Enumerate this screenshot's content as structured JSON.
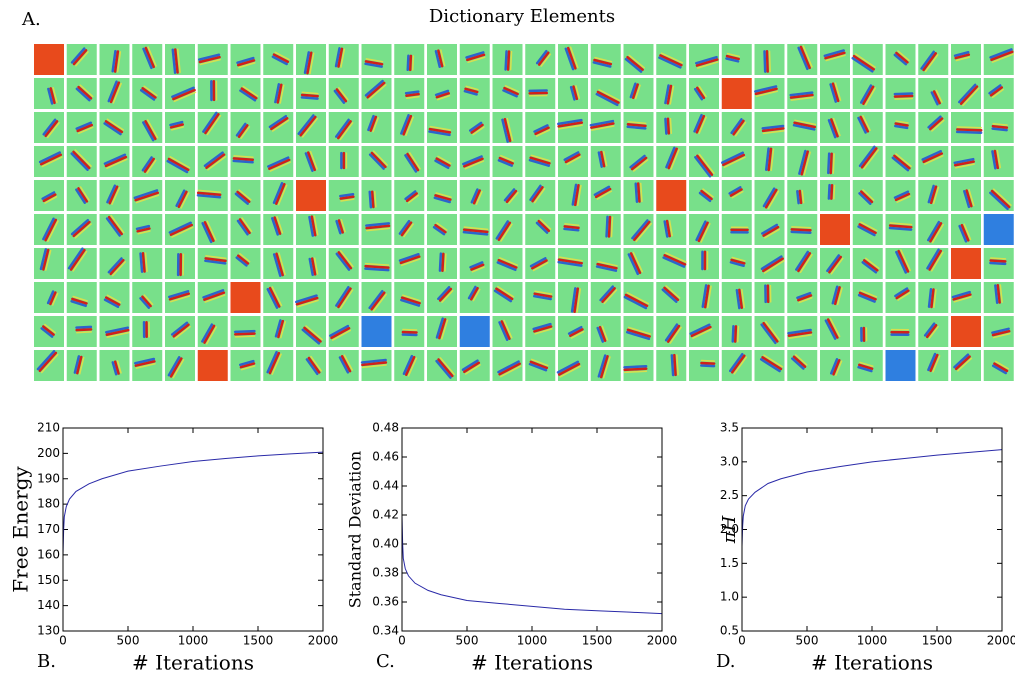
{
  "figure": {
    "label": "A.",
    "title": "Dictionary Elements"
  },
  "chart_data": [
    {
      "type": "line",
      "panel": "B.",
      "xlabel": "# Iterations",
      "ylabel": "Free Energy",
      "color": "#2a2aa8",
      "x": [
        0,
        5,
        10,
        25,
        50,
        100,
        200,
        300,
        500,
        750,
        1000,
        1250,
        1500,
        1750,
        2000
      ],
      "values": [
        160,
        170,
        175,
        179,
        182,
        185,
        188,
        190,
        193,
        195,
        196.8,
        198,
        199,
        199.8,
        200.5
      ],
      "xlim": [
        0,
        2000
      ],
      "xticks": [
        0,
        500,
        1000,
        1500,
        2000
      ],
      "ylim": [
        130,
        210
      ],
      "yticks": [
        130,
        140,
        150,
        160,
        170,
        180,
        190,
        200,
        210
      ]
    },
    {
      "type": "line",
      "panel": "C.",
      "xlabel": "# Iterations",
      "ylabel": "Standard Deviation",
      "color": "#2a2aa8",
      "x": [
        0,
        5,
        10,
        25,
        50,
        100,
        200,
        300,
        500,
        750,
        1000,
        1250,
        1500,
        1750,
        2000
      ],
      "values": [
        0.42,
        0.4,
        0.39,
        0.383,
        0.378,
        0.373,
        0.368,
        0.365,
        0.361,
        0.359,
        0.357,
        0.355,
        0.354,
        0.353,
        0.352
      ],
      "xlim": [
        0,
        2000
      ],
      "xticks": [
        0,
        500,
        1000,
        1500,
        2000
      ],
      "ylim": [
        0.34,
        0.48
      ],
      "yticks": [
        0.34,
        0.36,
        0.38,
        {
          "value": 0.4,
          "label": "0.40"
        },
        0.42,
        0.44,
        0.46,
        0.48
      ]
    },
    {
      "type": "line",
      "panel": "D.",
      "xlabel": "# Iterations",
      "ylabel": "πH",
      "color": "#2a2aa8",
      "x": [
        0,
        5,
        10,
        25,
        50,
        100,
        200,
        300,
        500,
        750,
        1000,
        1250,
        1500,
        1750,
        2000
      ],
      "values": [
        1.75,
        2.05,
        2.2,
        2.35,
        2.45,
        2.55,
        2.68,
        2.75,
        2.85,
        2.93,
        3.0,
        3.05,
        3.1,
        3.14,
        3.18
      ],
      "xlim": [
        0,
        2000
      ],
      "xticks": [
        0,
        500,
        1000,
        1500,
        2000
      ],
      "ylim": [
        0.5,
        3.5
      ],
      "yticks": [
        0.5,
        {
          "value": 1,
          "label": "1.0"
        },
        1.5,
        {
          "value": 2,
          "label": "2.0"
        },
        2.5,
        {
          "value": 3,
          "label": "3.0"
        },
        3.5
      ]
    }
  ]
}
